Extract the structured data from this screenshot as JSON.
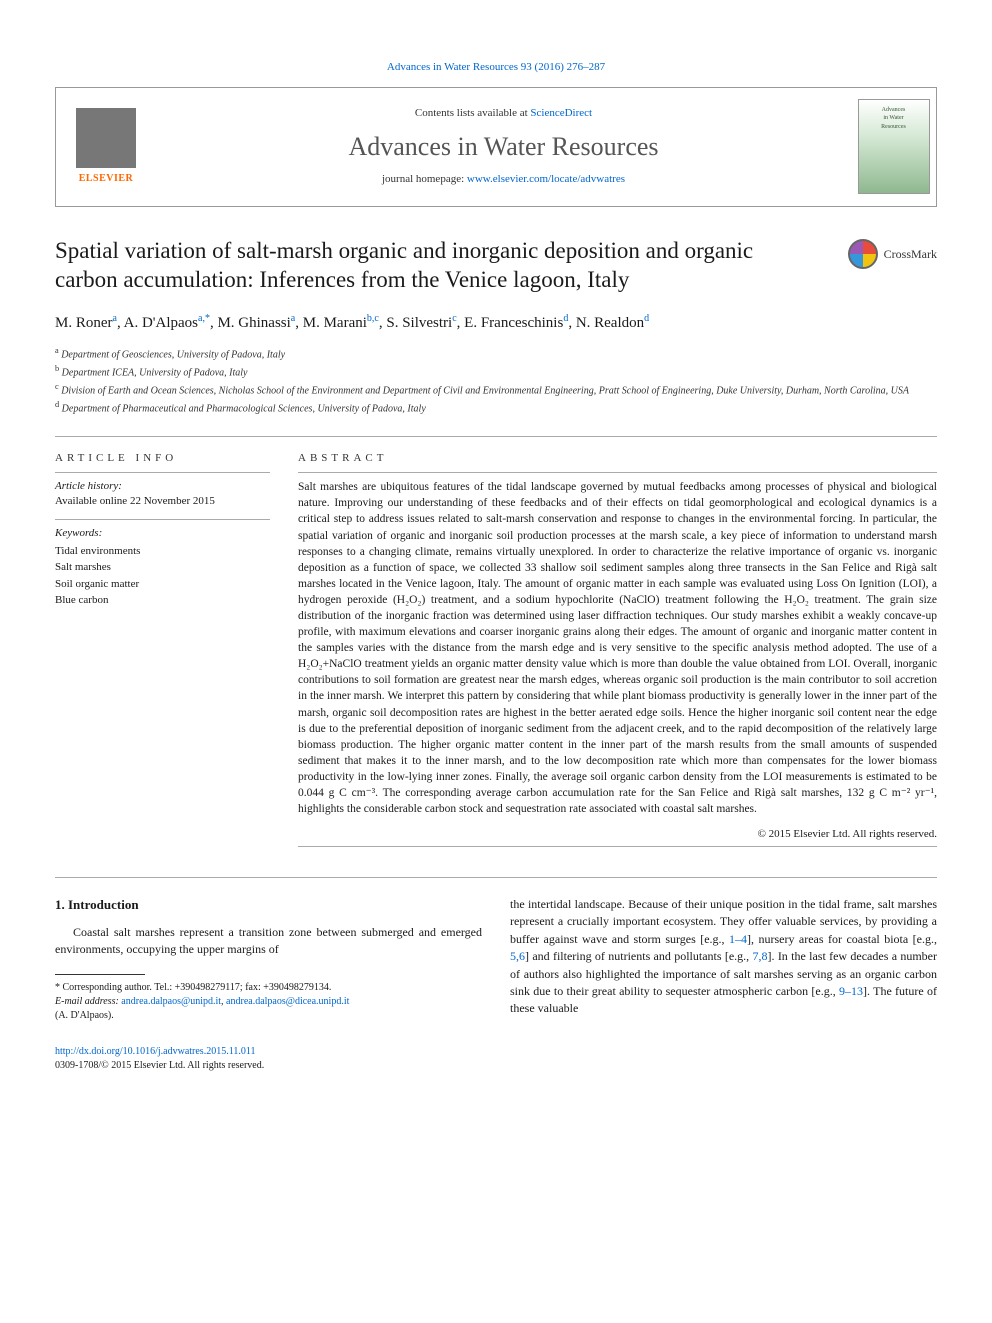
{
  "journal_ref": "Advances in Water Resources 93 (2016) 276–287",
  "header": {
    "contents_prefix": "Contents lists available at ",
    "contents_link": "ScienceDirect",
    "journal_title": "Advances in Water Resources",
    "homepage_prefix": "journal homepage: ",
    "homepage_link": "www.elsevier.com/locate/advwatres",
    "publisher": "ELSEVIER",
    "cover_line1": "Advances",
    "cover_line2": "in Water",
    "cover_line3": "Resources"
  },
  "crossmark": "CrossMark",
  "article": {
    "title": "Spatial variation of salt-marsh organic and inorganic deposition and organic carbon accumulation: Inferences from the Venice lagoon, Italy",
    "authors_html": "M. Roner<sup>a</sup>, A. D'Alpaos<sup>a,*</sup>, M. Ghinassi<sup>a</sup>, M. Marani<sup>b,c</sup>, S. Silvestri<sup>c</sup>, E. Franceschinis<sup>d</sup>, N. Realdon<sup>d</sup>",
    "affiliations": [
      {
        "sup": "a",
        "text": "Department of Geosciences, University of Padova, Italy"
      },
      {
        "sup": "b",
        "text": "Department ICEA, University of Padova, Italy"
      },
      {
        "sup": "c",
        "text": "Division of Earth and Ocean Sciences, Nicholas School of the Environment and Department of Civil and Environmental Engineering, Pratt School of Engineering, Duke University, Durham, North Carolina, USA"
      },
      {
        "sup": "d",
        "text": "Department of Pharmaceutical and Pharmacological Sciences, University of Padova, Italy"
      }
    ]
  },
  "info": {
    "section_label": "ARTICLE INFO",
    "history_label": "Article history:",
    "history_text": "Available online 22 November 2015",
    "keywords_label": "Keywords:",
    "keywords": [
      "Tidal environments",
      "Salt marshes",
      "Soil organic matter",
      "Blue carbon"
    ]
  },
  "abstract": {
    "section_label": "ABSTRACT",
    "text": "Salt marshes are ubiquitous features of the tidal landscape governed by mutual feedbacks among processes of physical and biological nature. Improving our understanding of these feedbacks and of their effects on tidal geomorphological and ecological dynamics is a critical step to address issues related to salt-marsh conservation and response to changes in the environmental forcing. In particular, the spatial variation of organic and inorganic soil production processes at the marsh scale, a key piece of information to understand marsh responses to a changing climate, remains virtually unexplored. In order to characterize the relative importance of organic vs. inorganic deposition as a function of space, we collected 33 shallow soil sediment samples along three transects in the San Felice and Rigà salt marshes located in the Venice lagoon, Italy. The amount of organic matter in each sample was evaluated using Loss On Ignition (LOI), a hydrogen peroxide (H₂O₂) treatment, and a sodium hypochlorite (NaClO) treatment following the H₂O₂ treatment. The grain size distribution of the inorganic fraction was determined using laser diffraction techniques. Our study marshes exhibit a weakly concave-up profile, with maximum elevations and coarser inorganic grains along their edges. The amount of organic and inorganic matter content in the samples varies with the distance from the marsh edge and is very sensitive to the specific analysis method adopted. The use of a H₂O₂+NaClO treatment yields an organic matter density value which is more than double the value obtained from LOI. Overall, inorganic contributions to soil formation are greatest near the marsh edges, whereas organic soil production is the main contributor to soil accretion in the inner marsh. We interpret this pattern by considering that while plant biomass productivity is generally lower in the inner part of the marsh, organic soil decomposition rates are highest in the better aerated edge soils. Hence the higher inorganic soil content near the edge is due to the preferential deposition of inorganic sediment from the adjacent creek, and to the rapid decomposition of the relatively large biomass production. The higher organic matter content in the inner part of the marsh results from the small amounts of suspended sediment that makes it to the inner marsh, and to the low decomposition rate which more than compensates for the lower biomass productivity in the low-lying inner zones. Finally, the average soil organic carbon density from the LOI measurements is estimated to be 0.044 g C cm⁻³. The corresponding average carbon accumulation rate for the San Felice and Rigà salt marshes, 132 g C m⁻² yr⁻¹, highlights the considerable carbon stock and sequestration rate associated with coastal salt marshes.",
    "copyright": "© 2015 Elsevier Ltd. All rights reserved."
  },
  "intro": {
    "heading": "1. Introduction",
    "col1": "Coastal salt marshes represent a transition zone between submerged and emerged environments, occupying the upper margins of",
    "col2_pre": "the intertidal landscape. Because of their unique position in the tidal frame, salt marshes represent a crucially important ecosystem. They offer valuable services, by providing a buffer against wave and storm surges [e.g., ",
    "col2_cite1": "1–4",
    "col2_mid1": "], nursery areas for coastal biota [e.g., ",
    "col2_cite2": "5,6",
    "col2_mid2": "] and filtering of nutrients and pollutants [e.g., ",
    "col2_cite3": "7,8",
    "col2_mid3": "]. In the last few decades a number of authors also highlighted the importance of salt marshes serving as an organic carbon sink due to their great ability to sequester atmospheric carbon [e.g., ",
    "col2_cite4": "9–13",
    "col2_post": "]. The future of these valuable"
  },
  "footnote": {
    "corr": "* Corresponding author. Tel.: +390498279117; fax: +390498279134.",
    "email_label": "E-mail address: ",
    "email1": "andrea.dalpaos@unipd.it",
    "email_sep": ", ",
    "email2": "andrea.dalpaos@dicea.unipd.it",
    "attrib": "(A. D'Alpaos)."
  },
  "footer": {
    "doi": "http://dx.doi.org/10.1016/j.advwatres.2015.11.011",
    "issn": "0309-1708/© 2015 Elsevier Ltd. All rights reserved."
  },
  "colors": {
    "link": "#0066cc",
    "publisher_orange": "#ff6600",
    "text": "#1a1a1a",
    "rule": "#aaaaaa"
  }
}
